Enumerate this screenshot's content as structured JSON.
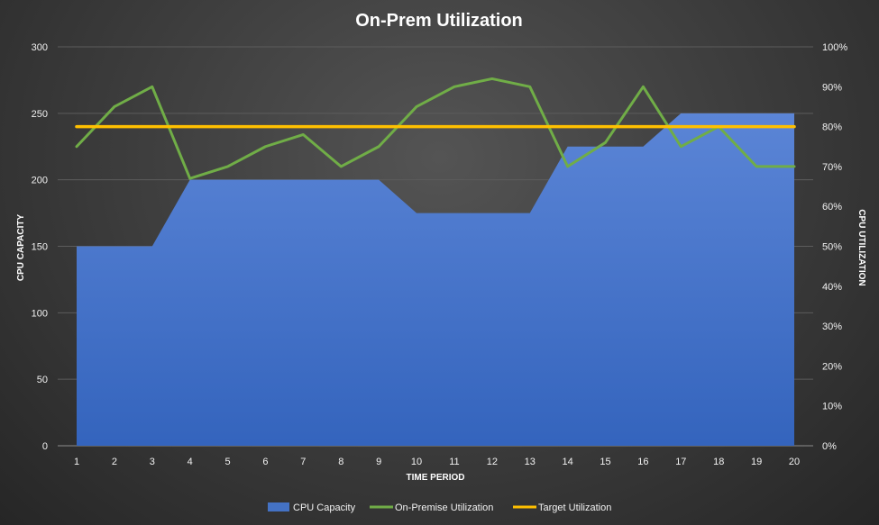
{
  "chart_data": {
    "type": "area",
    "title": "On-Prem Utilization",
    "xlabel": "TIME PERIOD",
    "ylabel": "CPU CAPACITY",
    "y2label": "CPU UTILIZATION",
    "x": [
      1,
      2,
      3,
      4,
      5,
      6,
      7,
      8,
      9,
      10,
      11,
      12,
      13,
      14,
      15,
      16,
      17,
      18,
      19,
      20
    ],
    "ylim": [
      0,
      300
    ],
    "yticks": [
      0,
      50,
      100,
      150,
      200,
      250,
      300
    ],
    "y2lim": [
      0,
      100
    ],
    "y2ticks": [
      "0%",
      "10%",
      "20%",
      "30%",
      "40%",
      "50%",
      "60%",
      "70%",
      "80%",
      "90%",
      "100%"
    ],
    "grid": true,
    "legend_position": "bottom",
    "series": [
      {
        "name": "CPU Capacity",
        "kind": "area",
        "axis": "left",
        "color": "#4472c4",
        "values": [
          150,
          150,
          150,
          200,
          200,
          200,
          200,
          200,
          200,
          175,
          175,
          175,
          175,
          225,
          225,
          225,
          250,
          250,
          250,
          250
        ]
      },
      {
        "name": "On-Premise Utilization",
        "kind": "line",
        "axis": "right",
        "unit": "%",
        "color": "#70ad47",
        "values": [
          75,
          85,
          90,
          67,
          70,
          75,
          78,
          70,
          75,
          85,
          90,
          92,
          90,
          70,
          76,
          90,
          75,
          80,
          70,
          70
        ]
      },
      {
        "name": "Target Utilization",
        "kind": "line",
        "axis": "right",
        "unit": "%",
        "color": "#ffc000",
        "values": [
          80,
          80,
          80,
          80,
          80,
          80,
          80,
          80,
          80,
          80,
          80,
          80,
          80,
          80,
          80,
          80,
          80,
          80,
          80,
          80
        ]
      }
    ]
  }
}
